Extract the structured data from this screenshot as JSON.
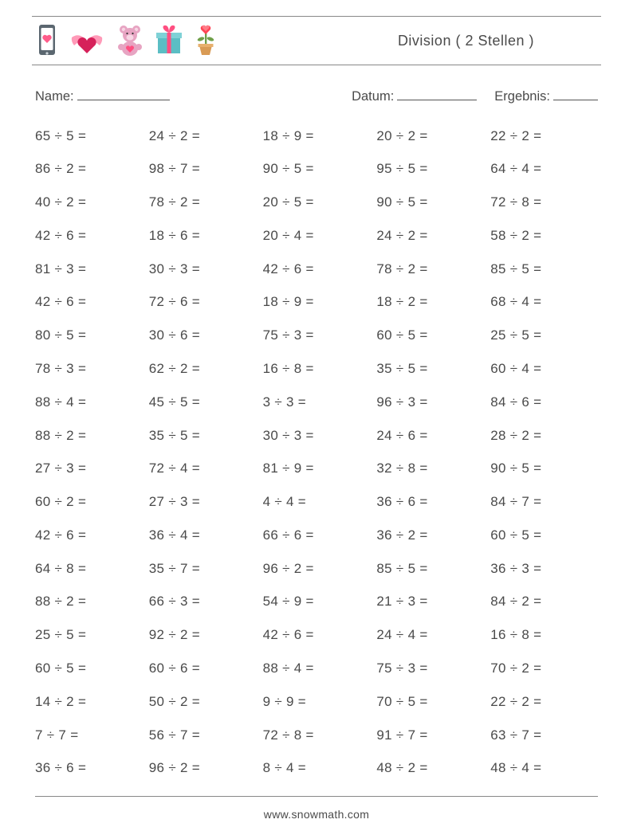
{
  "colors": {
    "text": "#4a4a4a",
    "border": "#888888",
    "bg": "#ffffff",
    "heart_pink": "#ff5c8a",
    "heart_dark": "#d6215a",
    "phone_case": "#5b6770",
    "phone_screen": "#ffffff",
    "wing_pink": "#ff9ab8",
    "bear_body": "#e7a4c2",
    "bear_inner": "#f7d6e4",
    "gift_box": "#5bbec4",
    "gift_ribbon": "#ff4f81",
    "pot": "#d99b55",
    "stem": "#6fa04a",
    "flower_red": "#ff4455"
  },
  "title": "Division ( 2 Stellen )",
  "labels": {
    "name": "Name:",
    "date": "Datum:",
    "result": "Ergebnis:"
  },
  "blanks": {
    "name_w": 116,
    "date_w": 100,
    "result_w": 56
  },
  "op": "÷",
  "eq": "=",
  "fontsizes": {
    "title": 18,
    "labels": 16.5,
    "cell": 17,
    "footer": 14
  },
  "columns": 5,
  "problems": [
    [
      [
        65,
        5
      ],
      [
        24,
        2
      ],
      [
        18,
        9
      ],
      [
        20,
        2
      ],
      [
        22,
        2
      ]
    ],
    [
      [
        86,
        2
      ],
      [
        98,
        7
      ],
      [
        90,
        5
      ],
      [
        95,
        5
      ],
      [
        64,
        4
      ]
    ],
    [
      [
        40,
        2
      ],
      [
        78,
        2
      ],
      [
        20,
        5
      ],
      [
        90,
        5
      ],
      [
        72,
        8
      ]
    ],
    [
      [
        42,
        6
      ],
      [
        18,
        6
      ],
      [
        20,
        4
      ],
      [
        24,
        2
      ],
      [
        58,
        2
      ]
    ],
    [
      [
        81,
        3
      ],
      [
        30,
        3
      ],
      [
        42,
        6
      ],
      [
        78,
        2
      ],
      [
        85,
        5
      ]
    ],
    [
      [
        42,
        6
      ],
      [
        72,
        6
      ],
      [
        18,
        9
      ],
      [
        18,
        2
      ],
      [
        68,
        4
      ]
    ],
    [
      [
        80,
        5
      ],
      [
        30,
        6
      ],
      [
        75,
        3
      ],
      [
        60,
        5
      ],
      [
        25,
        5
      ]
    ],
    [
      [
        78,
        3
      ],
      [
        62,
        2
      ],
      [
        16,
        8
      ],
      [
        35,
        5
      ],
      [
        60,
        4
      ]
    ],
    [
      [
        88,
        4
      ],
      [
        45,
        5
      ],
      [
        3,
        3
      ],
      [
        96,
        3
      ],
      [
        84,
        6
      ]
    ],
    [
      [
        88,
        2
      ],
      [
        35,
        5
      ],
      [
        30,
        3
      ],
      [
        24,
        6
      ],
      [
        28,
        2
      ]
    ],
    [
      [
        27,
        3
      ],
      [
        72,
        4
      ],
      [
        81,
        9
      ],
      [
        32,
        8
      ],
      [
        90,
        5
      ]
    ],
    [
      [
        60,
        2
      ],
      [
        27,
        3
      ],
      [
        4,
        4
      ],
      [
        36,
        6
      ],
      [
        84,
        7
      ]
    ],
    [
      [
        42,
        6
      ],
      [
        36,
        4
      ],
      [
        66,
        6
      ],
      [
        36,
        2
      ],
      [
        60,
        5
      ]
    ],
    [
      [
        64,
        8
      ],
      [
        35,
        7
      ],
      [
        96,
        2
      ],
      [
        85,
        5
      ],
      [
        36,
        3
      ]
    ],
    [
      [
        88,
        2
      ],
      [
        66,
        3
      ],
      [
        54,
        9
      ],
      [
        21,
        3
      ],
      [
        84,
        2
      ]
    ],
    [
      [
        25,
        5
      ],
      [
        92,
        2
      ],
      [
        42,
        6
      ],
      [
        24,
        4
      ],
      [
        16,
        8
      ]
    ],
    [
      [
        60,
        5
      ],
      [
        60,
        6
      ],
      [
        88,
        4
      ],
      [
        75,
        3
      ],
      [
        70,
        2
      ]
    ],
    [
      [
        14,
        2
      ],
      [
        50,
        2
      ],
      [
        9,
        9
      ],
      [
        70,
        5
      ],
      [
        22,
        2
      ]
    ],
    [
      [
        7,
        7
      ],
      [
        56,
        7
      ],
      [
        72,
        8
      ],
      [
        91,
        7
      ],
      [
        63,
        7
      ]
    ],
    [
      [
        36,
        6
      ],
      [
        96,
        2
      ],
      [
        8,
        4
      ],
      [
        48,
        2
      ],
      [
        48,
        4
      ]
    ]
  ],
  "footer": "www.snowmath.com"
}
